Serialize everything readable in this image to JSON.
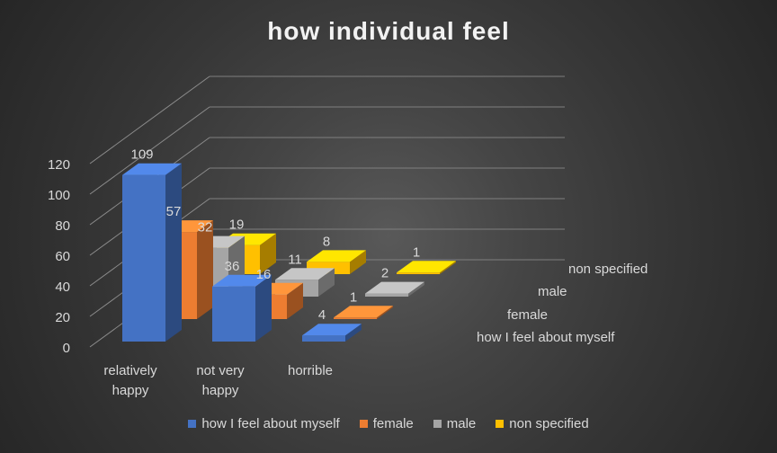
{
  "chart_data": {
    "type": "bar",
    "subtype": "3d-column",
    "title": "how individual feel",
    "categories": [
      "relatively happy",
      "not very happy",
      "horrible"
    ],
    "category_lines": [
      [
        "relatively",
        "happy"
      ],
      [
        "not very",
        "happy"
      ],
      [
        "horrible"
      ]
    ],
    "series": [
      {
        "name": "how I feel about myself",
        "values": [
          109,
          36,
          4
        ],
        "color": "#4472c4"
      },
      {
        "name": "female",
        "values": [
          57,
          16,
          1
        ],
        "color": "#ed7d31"
      },
      {
        "name": "male",
        "values": [
          32,
          11,
          2
        ],
        "color": "#a5a5a5"
      },
      {
        "name": "non specified",
        "values": [
          19,
          8,
          1
        ],
        "color": "#ffc000"
      }
    ],
    "y_ticks": [
      0,
      20,
      40,
      60,
      80,
      100,
      120
    ],
    "ylim": [
      0,
      120
    ],
    "legend_position": "bottom",
    "grid": true
  }
}
